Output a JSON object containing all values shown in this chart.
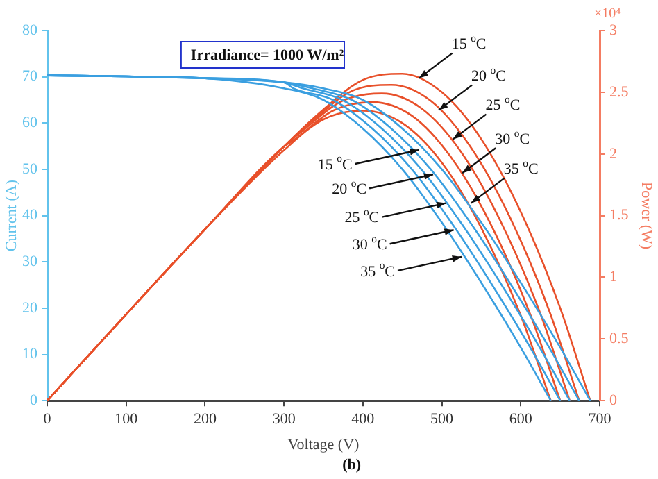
{
  "chart_data": {
    "type": "line",
    "xlabel": "Voltage (V)",
    "ylabel": "Current (A)",
    "y2label": "Power (W)",
    "xlim": [
      0,
      700
    ],
    "xticks": [
      0,
      100,
      200,
      300,
      400,
      500,
      600,
      700
    ],
    "ylim": [
      0,
      80
    ],
    "yticks": [
      0,
      10,
      20,
      30,
      40,
      50,
      60,
      70,
      80
    ],
    "y2lim": [
      0,
      3
    ],
    "y2ticks": [
      0,
      0.5,
      1,
      1.5,
      2,
      2.5,
      3
    ],
    "grid": false,
    "legend": false,
    "marker": "none",
    "line_style": "solid",
    "series": [
      {
        "color": "#3a9fe0",
        "x": [
          0,
          100,
          200,
          300,
          350,
          400,
          450,
          500,
          550,
          600,
          650,
          688
        ],
        "values": [
          70.3,
          70.1,
          69.7,
          68.8,
          67.5,
          65.0,
          58.8,
          50.0,
          38.5,
          25.5,
          11.5,
          0
        ]
      },
      {
        "color": "#3a9fe0",
        "x": [
          0,
          100,
          200,
          300,
          336,
          386,
          436,
          486,
          536,
          586,
          636,
          674
        ],
        "values": [
          70.3,
          70.1,
          69.7,
          68.8,
          67.5,
          65.0,
          58.8,
          50.0,
          38.5,
          25.5,
          11.5,
          0
        ]
      },
      {
        "color": "#3a9fe0",
        "x": [
          0,
          100,
          200,
          300,
          324,
          374,
          424,
          474,
          524,
          574,
          624,
          662
        ],
        "values": [
          70.3,
          70.1,
          69.7,
          68.8,
          67.5,
          65.0,
          58.8,
          50.0,
          38.5,
          25.5,
          11.5,
          0
        ]
      },
      {
        "color": "#3a9fe0",
        "x": [
          0,
          100,
          200,
          300,
          312,
          362,
          412,
          462,
          512,
          562,
          612,
          650
        ],
        "values": [
          70.3,
          70.1,
          69.7,
          68.8,
          67.5,
          65.0,
          58.8,
          50.0,
          38.5,
          25.5,
          11.5,
          0
        ]
      },
      {
        "color": "#3a9fe0",
        "x": [
          0,
          100,
          200,
          300,
          350,
          400,
          450,
          500,
          550,
          600,
          638
        ],
        "values": [
          70.3,
          70.1,
          69.7,
          67.5,
          65.0,
          58.8,
          50.0,
          38.5,
          25.5,
          11.5,
          0
        ]
      },
      {
        "color": "#e8502a",
        "axis": "y2",
        "x": [
          0,
          100,
          200,
          300,
          350,
          400,
          450,
          500,
          550,
          600,
          650,
          688
        ],
        "values": [
          0,
          0.7,
          1.39,
          2.06,
          2.36,
          2.6,
          2.65,
          2.5,
          2.12,
          1.53,
          0.75,
          0
        ]
      },
      {
        "color": "#e8502a",
        "axis": "y2",
        "x": [
          0,
          100,
          200,
          300,
          336,
          386,
          436,
          486,
          536,
          586,
          636,
          674
        ],
        "values": [
          0,
          0.7,
          1.39,
          2.06,
          2.27,
          2.51,
          2.56,
          2.43,
          2.06,
          1.49,
          0.73,
          0
        ]
      },
      {
        "color": "#e8502a",
        "axis": "y2",
        "x": [
          0,
          100,
          200,
          300,
          324,
          374,
          424,
          474,
          524,
          574,
          624,
          662
        ],
        "values": [
          0,
          0.7,
          1.39,
          2.06,
          2.19,
          2.43,
          2.49,
          2.37,
          2.02,
          1.46,
          0.72,
          0
        ]
      },
      {
        "color": "#e8502a",
        "axis": "y2",
        "x": [
          0,
          100,
          200,
          300,
          312,
          362,
          412,
          462,
          512,
          562,
          612,
          650
        ],
        "values": [
          0,
          0.7,
          1.39,
          2.06,
          2.11,
          2.35,
          2.42,
          2.31,
          1.97,
          1.43,
          0.7,
          0
        ]
      },
      {
        "color": "#e8502a",
        "axis": "y2",
        "x": [
          0,
          100,
          200,
          300,
          350,
          400,
          450,
          500,
          550,
          600,
          638
        ],
        "values": [
          0,
          0.7,
          1.39,
          2.03,
          2.28,
          2.35,
          2.25,
          1.93,
          1.4,
          0.69,
          0
        ]
      }
    ],
    "annotations": [
      "Irradiance= 1000 W/m²",
      "×10⁴",
      "(b)",
      {
        "text": "15 $^{o}$C",
        "x": 471,
        "y": 69.7
      },
      {
        "text": "20 $^{o}$C",
        "x": 496,
        "y": 62.8
      },
      {
        "text": "25 $^{o}$C",
        "x": 514,
        "y": 56.5
      },
      {
        "text": "30 $^{o}$C",
        "x": 526,
        "y": 49.2
      },
      {
        "text": "35 $^{o}$C",
        "x": 537,
        "y": 42.7
      },
      {
        "text": "15 $^{o}$C",
        "x": 471,
        "y": 54.2
      },
      {
        "text": "20 $^{o}$C",
        "x": 489,
        "y": 48.9
      },
      {
        "text": "25 $^{o}$C",
        "x": 505,
        "y": 42.7
      },
      {
        "text": "30 $^{o}$C",
        "x": 515,
        "y": 36.9
      },
      {
        "text": "35 $^{o}$C",
        "x": 525,
        "y": 31.1
      }
    ]
  }
}
